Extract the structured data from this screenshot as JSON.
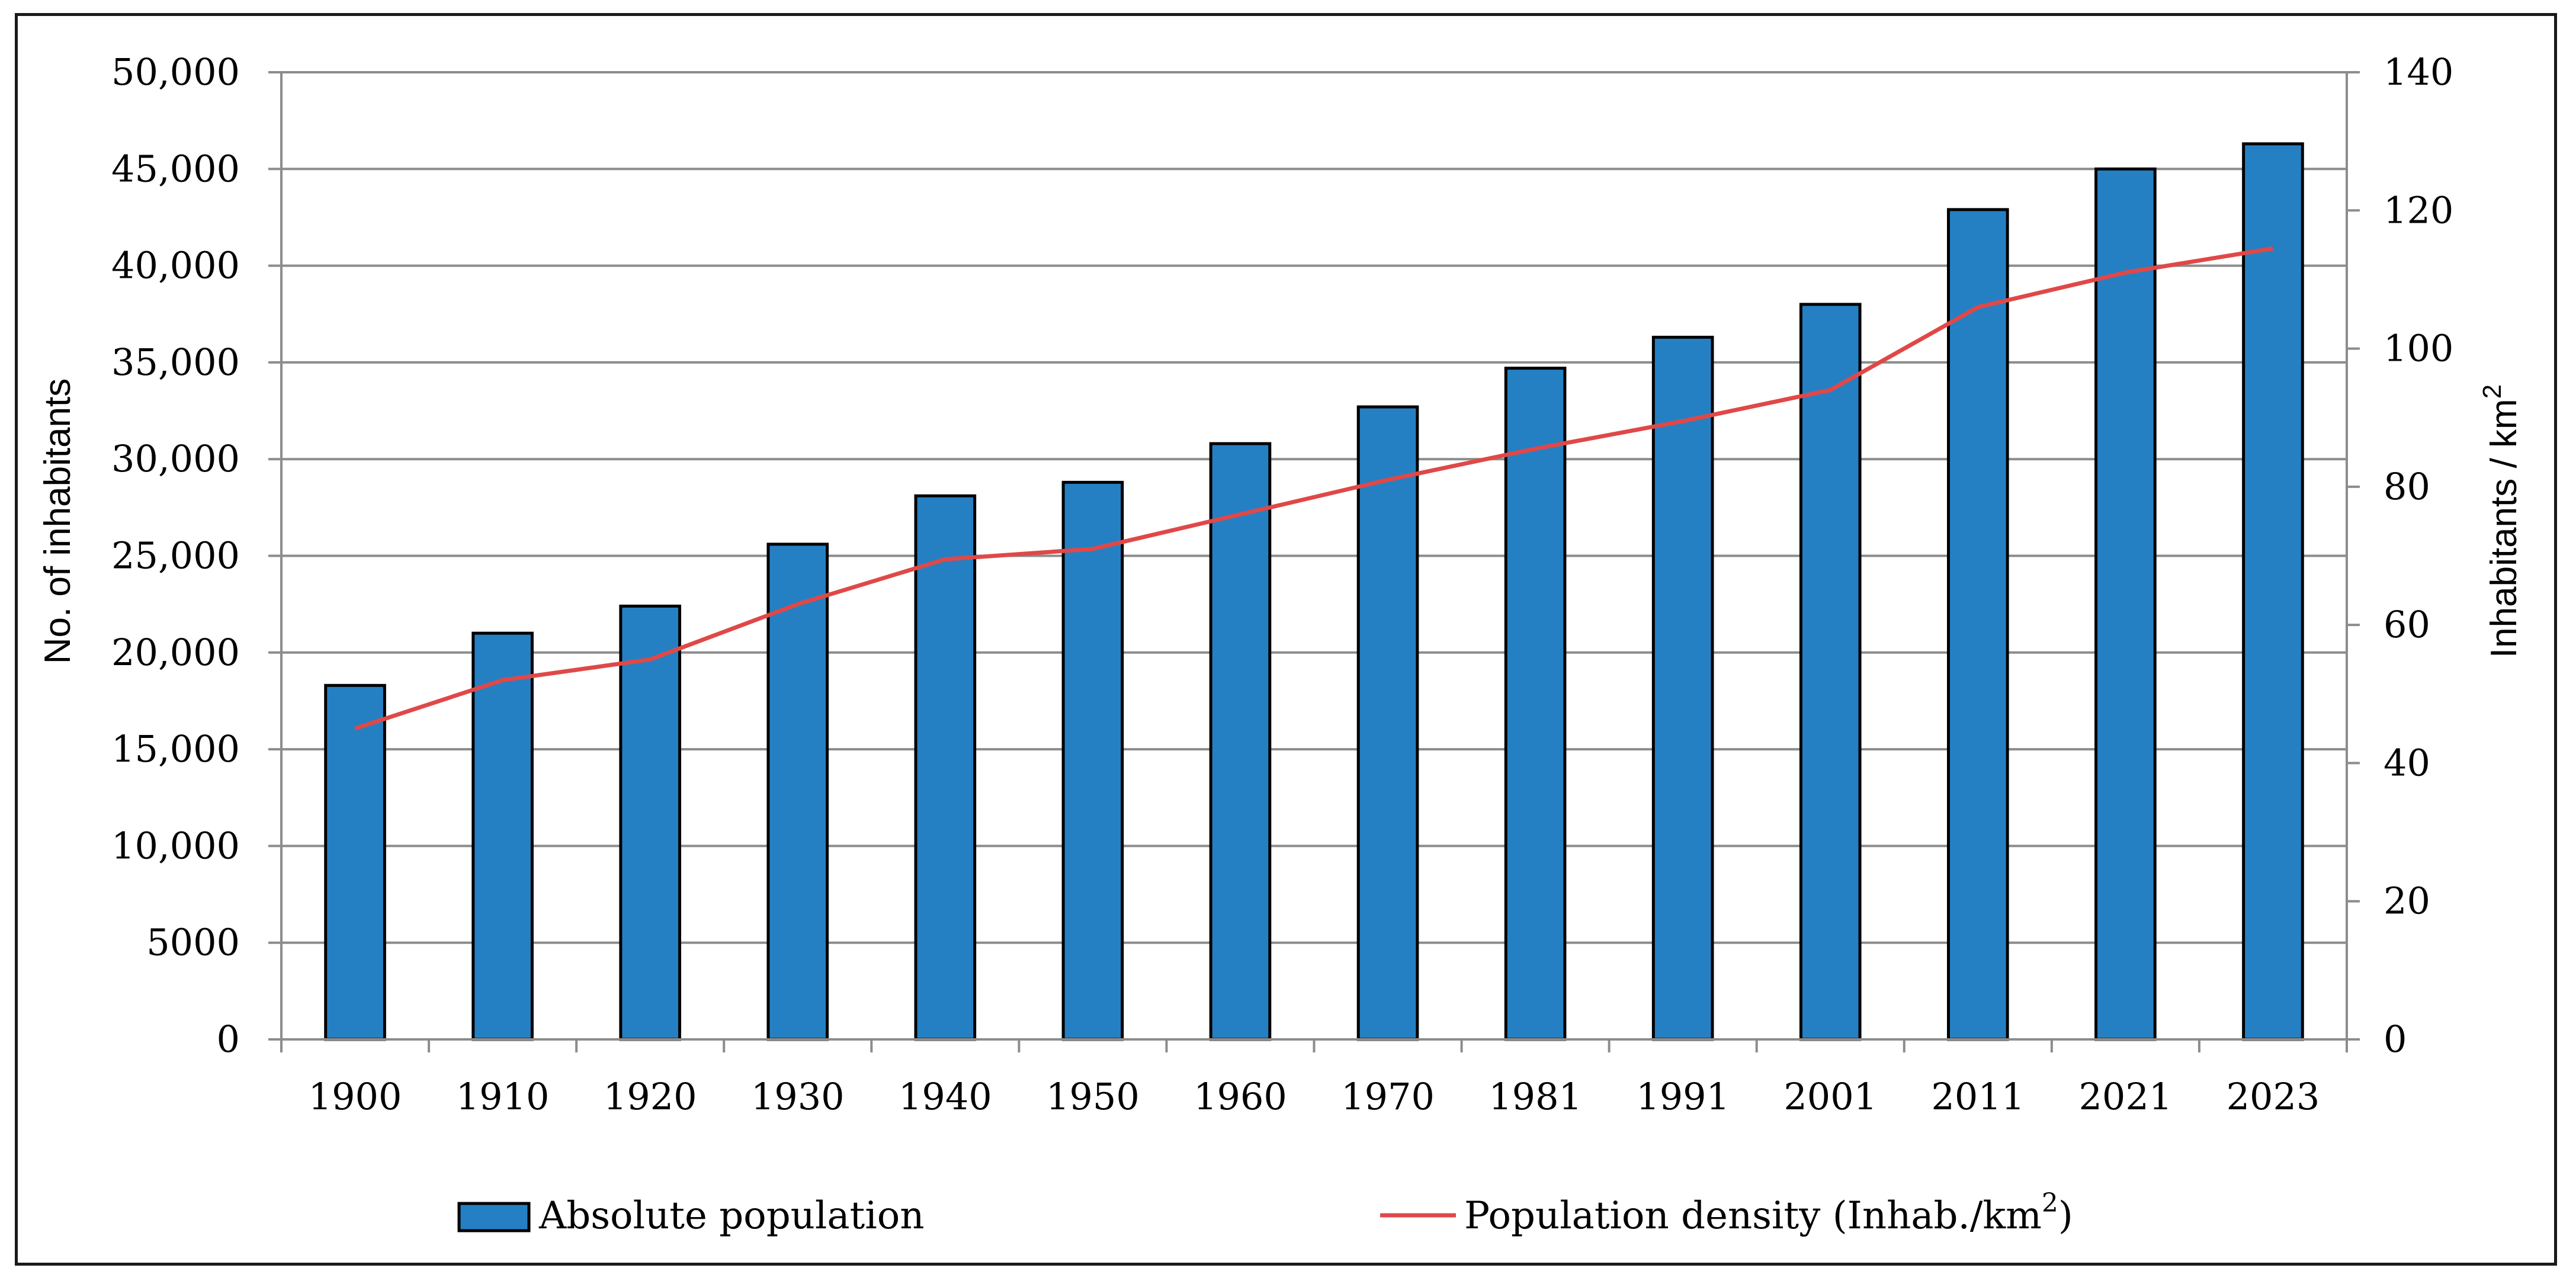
{
  "chart_data": {
    "type": "bar",
    "categories": [
      "1900",
      "1910",
      "1920",
      "1930",
      "1940",
      "1950",
      "1960",
      "1970",
      "1981",
      "1991",
      "2001",
      "2011",
      "2021",
      "2023"
    ],
    "series": [
      {
        "name": "Absolute population",
        "type": "bar",
        "axis": "left",
        "color": "#2580C3",
        "values": [
          18300,
          21000,
          22400,
          25600,
          28100,
          28800,
          30800,
          32700,
          34700,
          36300,
          38000,
          42900,
          45000,
          46300
        ]
      },
      {
        "name": "Population density (Inhab./km",
        "name_superscript": "2",
        "name_suffix": ")",
        "type": "line",
        "axis": "right",
        "color": "#E04848",
        "values": [
          45,
          52,
          55,
          63,
          69.5,
          71,
          76,
          81,
          85.5,
          89.5,
          94,
          106,
          111,
          114.5
        ]
      }
    ],
    "y_left": {
      "label": "No. of inhabitants",
      "ylim": [
        0,
        50000
      ],
      "ticks": [
        0,
        5000,
        10000,
        15000,
        20000,
        25000,
        30000,
        35000,
        40000,
        45000,
        50000
      ],
      "tick_labels": [
        "0",
        "5000",
        "10,000",
        "15,000",
        "20,000",
        "25,000",
        "30,000",
        "35,000",
        "40,000",
        "45,000",
        "50,000"
      ]
    },
    "y_right": {
      "label": "Inhabitants / km",
      "label_superscript": "2",
      "ylim": [
        0,
        140
      ],
      "ticks": [
        0,
        20,
        40,
        60,
        80,
        100,
        120,
        140
      ],
      "tick_labels": [
        "0",
        "20",
        "40",
        "60",
        "80",
        "100",
        "120",
        "140"
      ]
    },
    "grid": true,
    "legend_position": "bottom"
  }
}
